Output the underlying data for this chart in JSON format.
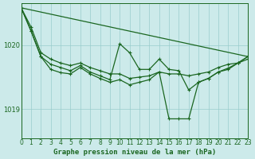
{
  "background_color": "#cceaea",
  "grid_color": "#99cccc",
  "line_color": "#1a6620",
  "title": "Graphe pression niveau de la mer (hPa)",
  "xlim": [
    0,
    23
  ],
  "ylim": [
    1018.55,
    1020.65
  ],
  "yticks": [
    1019.0,
    1020.0
  ],
  "ytick_labels": [
    "1019",
    "1020"
  ],
  "xticks": [
    0,
    1,
    2,
    3,
    4,
    5,
    6,
    7,
    8,
    9,
    10,
    11,
    12,
    13,
    14,
    15,
    16,
    17,
    18,
    19,
    20,
    21,
    22,
    23
  ],
  "series": [
    {
      "x": [
        0,
        1,
        2,
        3,
        4,
        5,
        6,
        7,
        8,
        9,
        10,
        11,
        12,
        13,
        14,
        15,
        16,
        17,
        18,
        19,
        20,
        21,
        22,
        23
      ],
      "y": [
        1020.58,
        1020.28,
        1019.88,
        1019.78,
        1019.72,
        1019.68,
        1019.72,
        1019.65,
        1019.6,
        1019.55,
        1019.55,
        1019.48,
        1019.5,
        1019.52,
        1019.58,
        1019.55,
        1019.55,
        1019.52,
        1019.55,
        1019.58,
        1019.65,
        1019.7,
        1019.72,
        1019.78
      ],
      "marker": true
    },
    {
      "x": [
        0,
        1,
        2,
        3,
        4,
        5,
        6,
        7,
        8,
        9,
        10,
        11,
        12,
        13,
        14,
        15,
        16,
        17,
        18,
        19,
        20,
        21,
        22,
        23
      ],
      "y": [
        1020.58,
        1020.22,
        1019.82,
        1019.7,
        1019.65,
        1019.6,
        1019.68,
        1019.58,
        1019.52,
        1019.46,
        1020.02,
        1019.88,
        1019.62,
        1019.62,
        1019.78,
        1019.62,
        1019.6,
        1019.3,
        1019.42,
        1019.48,
        1019.58,
        1019.62,
        1019.72,
        1019.82
      ],
      "marker": true
    },
    {
      "x": [
        0,
        1,
        2,
        3,
        4,
        5,
        6,
        7,
        8,
        9,
        10,
        11,
        12,
        13,
        14,
        15,
        16,
        17,
        18,
        19,
        20,
        21,
        22,
        23
      ],
      "y": [
        1020.58,
        1020.22,
        1019.82,
        1019.62,
        1019.57,
        1019.55,
        1019.65,
        1019.55,
        1019.48,
        1019.42,
        1019.46,
        1019.38,
        1019.42,
        1019.46,
        1019.58,
        1018.85,
        1018.85,
        1018.85,
        1019.42,
        1019.48,
        1019.58,
        1019.64,
        1019.72,
        1019.82
      ],
      "marker": true
    },
    {
      "x": [
        0,
        23
      ],
      "y": [
        1020.58,
        1019.82
      ],
      "marker": false
    }
  ],
  "marker_style": "+",
  "markersize": 3.5,
  "linewidth": 0.9,
  "title_fontsize": 6.5,
  "tick_fontsize": 5.5
}
